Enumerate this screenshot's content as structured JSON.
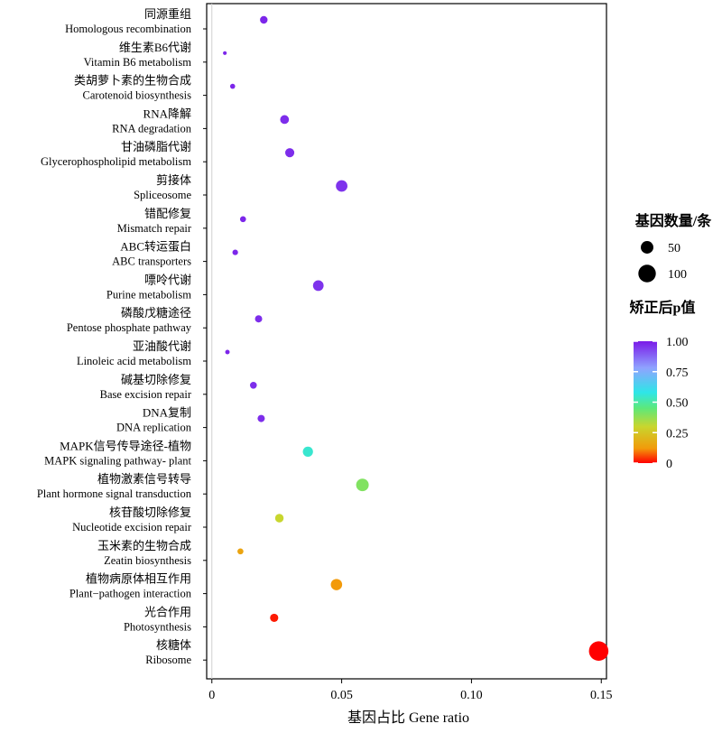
{
  "chart_data": {
    "type": "scatter",
    "xlabel": "基因占比 Gene ratio",
    "xlim": [
      -0.002,
      0.152
    ],
    "xticks": [
      0,
      0.05,
      0.1,
      0.15
    ],
    "xtick_labels": [
      "0",
      "0.05",
      "0.10",
      "0.15"
    ],
    "grid": false,
    "categories": [
      {
        "cn": "同源重组",
        "en": "Homologous recombination",
        "x": 0.02,
        "count": 10,
        "padj": 0.98
      },
      {
        "cn": "维生素B6代谢",
        "en": "Vitamin B6 metabolism",
        "x": 0.005,
        "count": 2,
        "padj": 0.98
      },
      {
        "cn": "类胡萝卜素的生物合成",
        "en": "Carotenoid biosynthesis",
        "x": 0.008,
        "count": 4,
        "padj": 0.98
      },
      {
        "cn": "RNA降解",
        "en": "RNA degradation",
        "x": 0.028,
        "count": 14,
        "padj": 0.97
      },
      {
        "cn": "甘油磷脂代谢",
        "en": "Glycerophospholipid metabolism",
        "x": 0.03,
        "count": 15,
        "padj": 0.97
      },
      {
        "cn": "剪接体",
        "en": "Spliceosome",
        "x": 0.05,
        "count": 25,
        "padj": 0.96
      },
      {
        "cn": "错配修复",
        "en": "Mismatch repair",
        "x": 0.012,
        "count": 6,
        "padj": 0.98
      },
      {
        "cn": "ABC转运蛋白",
        "en": "ABC transporters",
        "x": 0.009,
        "count": 5,
        "padj": 0.98
      },
      {
        "cn": "嘌呤代谢",
        "en": "Purine metabolism",
        "x": 0.041,
        "count": 21,
        "padj": 0.96
      },
      {
        "cn": "磷酸戊糖途径",
        "en": "Pentose phosphate pathway",
        "x": 0.018,
        "count": 9,
        "padj": 0.97
      },
      {
        "cn": "亚油酸代谢",
        "en": "Linoleic acid metabolism",
        "x": 0.006,
        "count": 3,
        "padj": 0.98
      },
      {
        "cn": "碱基切除修复",
        "en": "Base excision repair",
        "x": 0.016,
        "count": 8,
        "padj": 0.97
      },
      {
        "cn": "DNA复制",
        "en": "DNA replication",
        "x": 0.019,
        "count": 9,
        "padj": 0.97
      },
      {
        "cn": "MAPK信号传导途径-植物",
        "en": "MAPK signaling pathway- plant",
        "x": 0.037,
        "count": 19,
        "padj": 0.55
      },
      {
        "cn": "植物激素信号转导",
        "en": "Plant hormone signal transduction",
        "x": 0.058,
        "count": 30,
        "padj": 0.4
      },
      {
        "cn": "核苷酸切除修复",
        "en": "Nucleotide excision repair",
        "x": 0.026,
        "count": 13,
        "padj": 0.3
      },
      {
        "cn": "玉米素的生物合成",
        "en": "Zeatin biosynthesis",
        "x": 0.011,
        "count": 6,
        "padj": 0.15
      },
      {
        "cn": "植物病原体相互作用",
        "en": "Plant−pathogen interaction",
        "x": 0.048,
        "count": 24,
        "padj": 0.12
      },
      {
        "cn": "光合作用",
        "en": "Photosynthesis",
        "x": 0.024,
        "count": 12,
        "padj": 0.02
      },
      {
        "cn": "核糖体",
        "en": "Ribosome",
        "x": 0.149,
        "count": 75,
        "padj": 0.0
      }
    ],
    "size_legend": {
      "title": "基因数量/条",
      "entries": [
        {
          "label": "50",
          "value": 50
        },
        {
          "label": "100",
          "value": 100
        }
      ]
    },
    "color_legend": {
      "title": "矫正后p值",
      "ticks": [
        1.0,
        0.75,
        0.5,
        0.25,
        0
      ],
      "tick_labels": [
        "1.00",
        "0.75",
        "0.50",
        "0.25",
        "0"
      ],
      "stops": [
        {
          "v": 0.0,
          "color": "#ff0000"
        },
        {
          "v": 0.12,
          "color": "#f29a0a"
        },
        {
          "v": 0.3,
          "color": "#c8d62e"
        },
        {
          "v": 0.45,
          "color": "#5de87a"
        },
        {
          "v": 0.58,
          "color": "#2ee6e8"
        },
        {
          "v": 0.78,
          "color": "#8fa3ff"
        },
        {
          "v": 1.0,
          "color": "#7a1ae8"
        }
      ]
    }
  }
}
